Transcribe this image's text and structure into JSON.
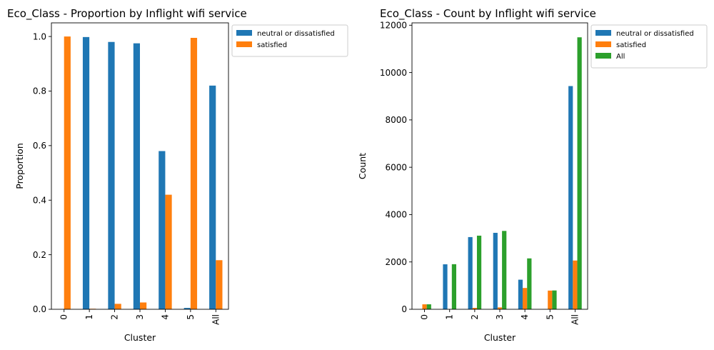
{
  "chart_data": [
    {
      "type": "bar",
      "title": "Eco_Class - Proportion by Inflight wifi service",
      "xlabel": "Cluster",
      "ylabel": "Proportion",
      "categories": [
        "0",
        "1",
        "2",
        "3",
        "4",
        "5",
        "All"
      ],
      "ylim": [
        0,
        1.05
      ],
      "yticks": [
        "0.0",
        "0.2",
        "0.4",
        "0.6",
        "0.8",
        "1.0"
      ],
      "legend_position": "outside-top-right",
      "series": [
        {
          "name": "neutral or dissatisfied",
          "color": "#1f77b4",
          "values": [
            0.0,
            0.998,
            0.98,
            0.975,
            0.58,
            0.005,
            0.82
          ]
        },
        {
          "name": "satisfied",
          "color": "#ff7f0e",
          "values": [
            1.0,
            0.002,
            0.02,
            0.025,
            0.42,
            0.995,
            0.18
          ]
        }
      ]
    },
    {
      "type": "bar",
      "title": "Eco_Class - Count by Inflight wifi service",
      "xlabel": "Cluster",
      "ylabel": "Count",
      "categories": [
        "0",
        "1",
        "2",
        "3",
        "4",
        "5",
        "All"
      ],
      "ylim": [
        0,
        12100
      ],
      "yticks": [
        "0",
        "2000",
        "4000",
        "6000",
        "8000",
        "10000",
        "12000"
      ],
      "legend_position": "outside-top-right",
      "series": [
        {
          "name": "neutral or dissatisfied",
          "color": "#1f77b4",
          "values": [
            0,
            1900,
            3050,
            3230,
            1250,
            5,
            9430
          ]
        },
        {
          "name": "satisfied",
          "color": "#ff7f0e",
          "values": [
            210,
            5,
            60,
            80,
            900,
            790,
            2060
          ]
        },
        {
          "name": "All",
          "color": "#2ca02c",
          "values": [
            210,
            1905,
            3110,
            3310,
            2150,
            795,
            11490
          ]
        }
      ]
    }
  ]
}
